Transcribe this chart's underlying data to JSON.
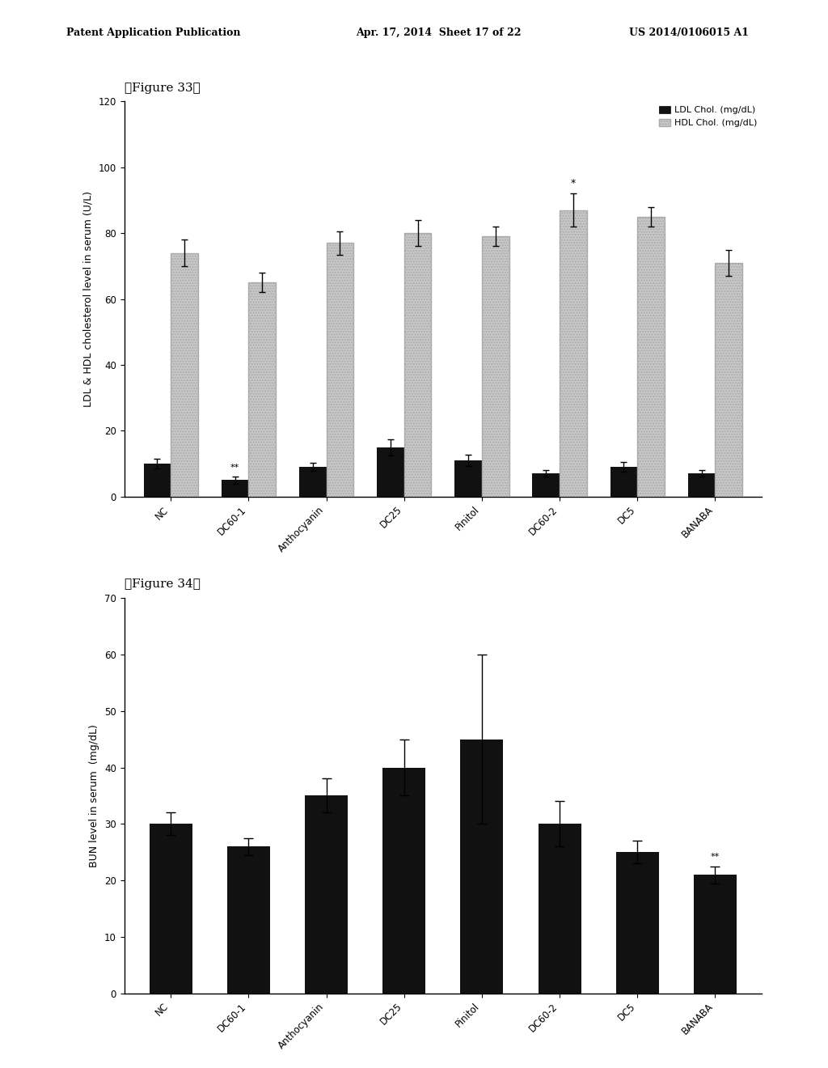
{
  "categories": [
    "NC",
    "DC60-1",
    "Anthocyanin",
    "DC25",
    "Pinitol",
    "DC60-2",
    "DC5",
    "BANABA"
  ],
  "fig33_ldl_values": [
    10,
    5,
    9,
    15,
    11,
    7,
    9,
    7
  ],
  "fig33_hdl_values": [
    74,
    65,
    77,
    80,
    79,
    87,
    85,
    71
  ],
  "fig33_ldl_errors": [
    1.5,
    1.0,
    1.2,
    2.5,
    1.8,
    1.0,
    1.5,
    1.0
  ],
  "fig33_hdl_errors": [
    4,
    3,
    3.5,
    4,
    3,
    5,
    3,
    4
  ],
  "fig33_ylabel": "LDL & HDL cholesterol level in serum (U/L)",
  "fig33_ylim": [
    0,
    120
  ],
  "fig33_yticks": [
    0,
    20,
    40,
    60,
    80,
    100,
    120
  ],
  "fig33_ldl_color": "#111111",
  "fig33_hdl_color": "#c8c8c8",
  "fig33_hdl_hatch": ".....",
  "fig33_ldl_annotation_idx": 1,
  "fig33_hdl_annotation_idx": 5,
  "fig34_values": [
    30,
    26,
    35,
    40,
    45,
    30,
    25,
    21
  ],
  "fig34_errors": [
    2,
    1.5,
    3,
    5,
    15,
    4,
    2,
    1.5
  ],
  "fig34_ylabel": "BUN level in serum  (mg/dL)",
  "fig34_ylim": [
    0,
    70
  ],
  "fig34_yticks": [
    0,
    10,
    20,
    30,
    40,
    50,
    60,
    70
  ],
  "fig34_bar_color": "#111111",
  "fig34_annotation_idx": 7,
  "header_left": "Patent Application Publication",
  "header_mid": "Apr. 17, 2014  Sheet 17 of 22",
  "header_right": "US 2014/0106015 A1",
  "legend_ldl_label": "LDL Chol. (mg/dL)",
  "legend_hdl_label": "HDL Chol. (mg/dL)",
  "fig33_label": "【Figure 33】",
  "fig34_label": "【Figure 34】",
  "bg_color": "#ffffff",
  "bar_width": 0.35
}
